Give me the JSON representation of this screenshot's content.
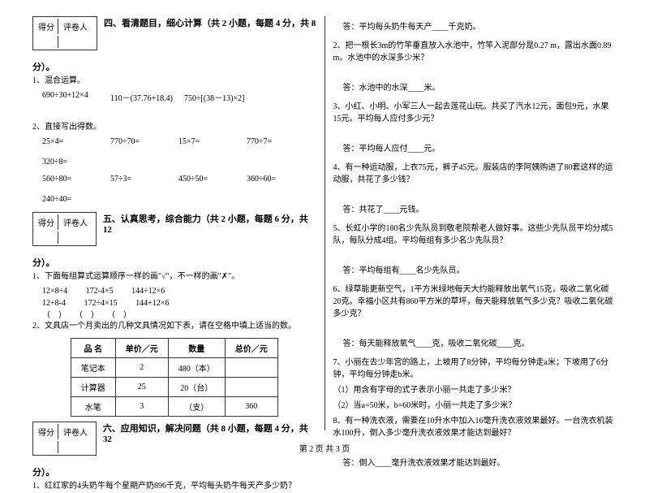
{
  "scoreBox": {
    "col1": "得分",
    "col2": "评卷人"
  },
  "section4": {
    "title": "四、看清题目，细心计算（共 2 小题，每题 4 分，共 8",
    "titleEnd": "分）。",
    "p1": "1、混合运算。",
    "p1items": [
      "690÷30+12×4",
      "110－(37.76+18.4)",
      "750÷[(38－13)×2]"
    ],
    "p2": "2、直接写出得数。",
    "p2row1": [
      "25×4=",
      "770÷70=",
      "15×7=",
      "770÷7=",
      "320÷8="
    ],
    "p2row2": [
      "560÷80=",
      "57÷3=",
      "450÷50=",
      "360÷60=",
      "240÷40="
    ]
  },
  "section5": {
    "title": "五、认真思考，综合能力（共 2 小题，每题 6 分，共 12",
    "titleEnd": "分）。",
    "p1": "1、下面每组算式运算顺序一样的画\"√\"，不一样的画\"✗\"。",
    "p1row1": [
      "12×8÷4",
      "172-4×5",
      "144÷12×6"
    ],
    "p1row2": [
      "12+8-4",
      "172÷4×15",
      "144+12×6"
    ],
    "p1checks": "（　）　　（　）　　（　）",
    "p2": "2、文具店一个月卖出的几种文具情况如下表，请在空格中填上适当的数。",
    "tableHeaders": [
      "品 名",
      "单价／元",
      "数量",
      "总价／元"
    ],
    "tableRows": [
      [
        "笔记本",
        "2",
        "480（本）",
        ""
      ],
      [
        "计算器",
        "25",
        "20（台）",
        ""
      ],
      [
        "水笔",
        "3",
        "（支）",
        "360"
      ]
    ]
  },
  "section6": {
    "title": "六、应用知识，解决问题（共 8 小题，每题 4 分，共 32",
    "titleEnd": "分）。",
    "q1": "1、红红家的4头奶牛每个星期产奶896千克，平均每头奶牛每天产多少奶？"
  },
  "rightCol": {
    "a1": "答：平均每头奶牛每天产____千克奶。",
    "q2": "2、把一根长3m的竹竿垂直放入水池中，竹竿入泥部分是0.27 m，露出水面0.89 m。水池中的水深多少米？",
    "a2": "答：水池中的水深____米。",
    "q3": "3、小红、小明、小军三人一起去莲花山玩。共买了汽水12元，面包9元，水果15元。平均每人应付多少元？",
    "a3": "答：平均每人应付____元。",
    "q4": "4、有一种运动服，上衣75元，裤子45元。服装店的李阿姨购进了80套这样的运动服，共花了多少钱？",
    "a4": "答：共花了____元钱。",
    "q5": "5、长虹小学的180名少先队员到敬老院帮老人做好事。这些少先队员平均分成5队，每队分成4组。平均每组有多少名少先队员？",
    "a5": "答：平均每组有____名少先队员。",
    "q6": "6、绿草能更新空气，1平方米绿地每天大约能释放出氧气15克，吸收二氧化碳20克。幸福小区共有860平方米的草坪，每天能释放氧气多少克？吸收二氧化碳多少克？",
    "a6": "答：每天能释放氧气____克，吸收二氧化碳____克。",
    "q7": "7、小丽在去少年宫的路上，上坡用了8分钟，平均每分钟走a米；下坡用了6分钟，平均每分钟走b米。",
    "q7a": "（1）用含有字母的式子表示小丽一共走了多少米？",
    "q7b": "（2）当a=50米，b=60米时，小丽一共走了多少米？",
    "q8": "8、有一种洗衣液，需要在10升水中加入16毫升洗衣液效果最好。一台洗衣机装水100升，倒入多少毫升洗衣液效果才能达到最好？",
    "a8": "答：倒入____毫升洗衣液效果才能达到最好。"
  },
  "footer": "第 2 页 共 3 页"
}
